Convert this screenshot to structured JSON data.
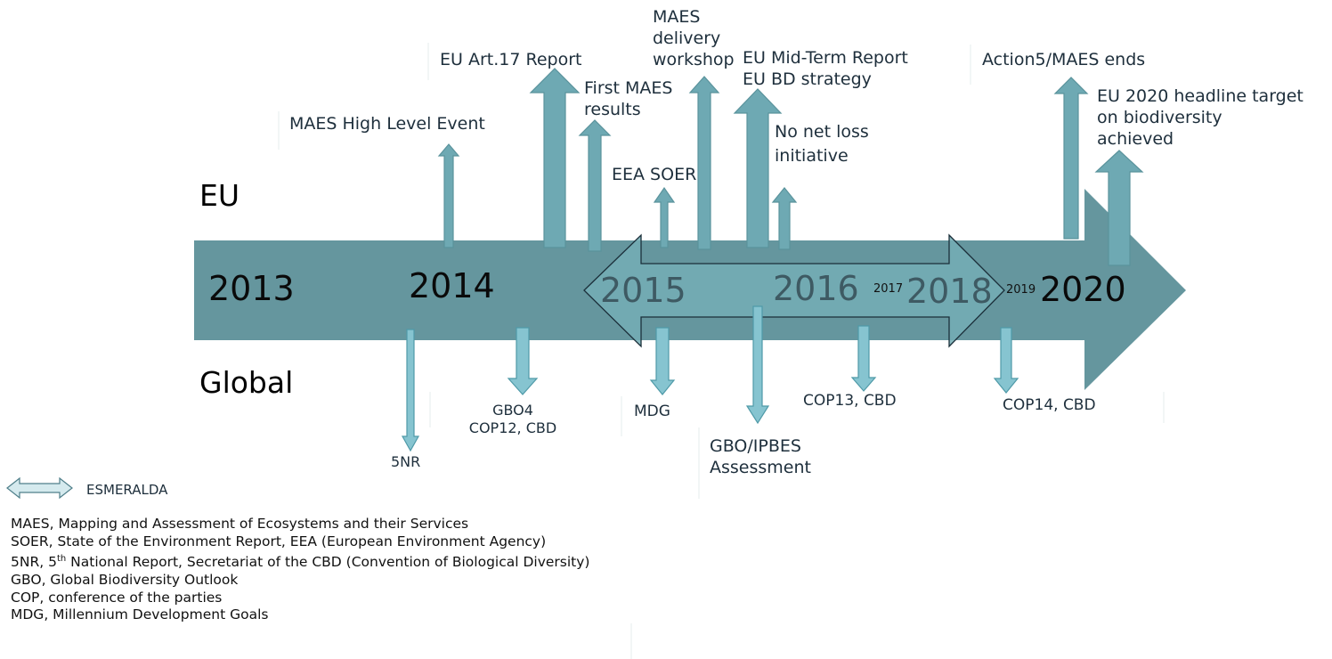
{
  "rows": {
    "eu": "EU",
    "global": "Global"
  },
  "years": {
    "y2013": "2013",
    "y2014": "2014",
    "y2015": "2015",
    "y2016": "2016",
    "y2017": "2017",
    "y2018": "2018",
    "y2019": "2019",
    "y2020": "2020"
  },
  "eu_events": {
    "maes_high_level": "MAES High Level Event",
    "art17": "EU Art.17 Report",
    "first_maes_1": "First MAES",
    "first_maes_2": "results",
    "eea_soer": "EEA SOER",
    "maes_workshop_1": "MAES",
    "maes_workshop_2": "delivery",
    "maes_workshop_3": "workshop",
    "mid_term_1": "EU Mid-Term Report",
    "mid_term_2": "EU BD strategy",
    "no_net_loss_1": "No net loss",
    "no_net_loss_2": "initiative",
    "action5": "Action5/MAES ends",
    "target_1": "EU 2020 headline target",
    "target_2": "on biodiversity",
    "target_3": "achieved"
  },
  "global_events": {
    "nr5": "5NR",
    "gbo4_1": "GBO4",
    "gbo4_2": "COP12, CBD",
    "mdg": "MDG",
    "gbo_ipbes_1": "GBO/IPBES",
    "gbo_ipbes_2": "Assessment",
    "cop13": "COP13, CBD",
    "cop14": "COP14, CBD"
  },
  "legend": {
    "esmeralda": "ESMERALDA"
  },
  "glossary": {
    "maes": "MAES, Mapping and Assessment of Ecosystems and their Services",
    "soer": "SOER, State of the Environment Report, EEA (European Environment Agency)",
    "nr5_prefix": "5NR, 5",
    "nr5_sup": "th",
    "nr5_rest": " National Report, Secretariat of the CBD (Convention of Biological Diversity)",
    "gbo": "GBO, Global Biodiversity Outlook",
    "cop": "COP, conference of the parties",
    "mdg": "MDG, Millennium Development Goals"
  },
  "colors": {
    "timeline": "#65969e",
    "eu_arrow": "#6ea9b3",
    "eu_arrow_stroke": "#5a939c",
    "global_arrow": "#86c4d0",
    "global_arrow_stroke": "#4f9aa8",
    "esmeralda_fill": "#74aeb5",
    "legend_arrow_fill": "#d5eaee",
    "text": "#1e2f3c"
  }
}
